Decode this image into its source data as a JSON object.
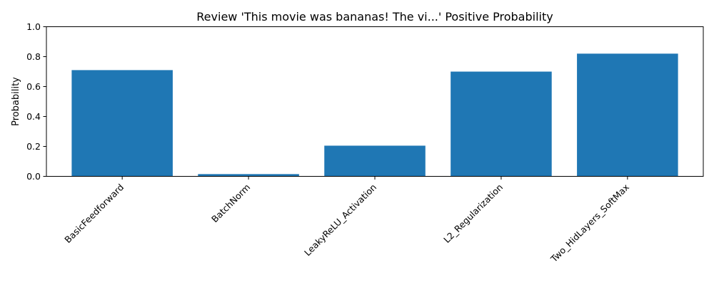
{
  "chart_data": {
    "type": "bar",
    "title": "Review 'This movie was bananas! The vi...' Positive Probability",
    "xlabel": "",
    "ylabel": "Probability",
    "categories": [
      "BasicFeedforward",
      "BatchNorm",
      "LeakyReLU_Activation",
      "L2_Regularization",
      "Two_HidLayers_SoftMax"
    ],
    "values": [
      0.71,
      0.015,
      0.205,
      0.7,
      0.82
    ],
    "ylim": [
      0,
      1.0
    ],
    "yticks": [
      "0.0",
      "0.2",
      "0.4",
      "0.6",
      "0.8",
      "1.0"
    ],
    "bar_color": "#1f77b4",
    "grid": false,
    "legend": "none"
  }
}
